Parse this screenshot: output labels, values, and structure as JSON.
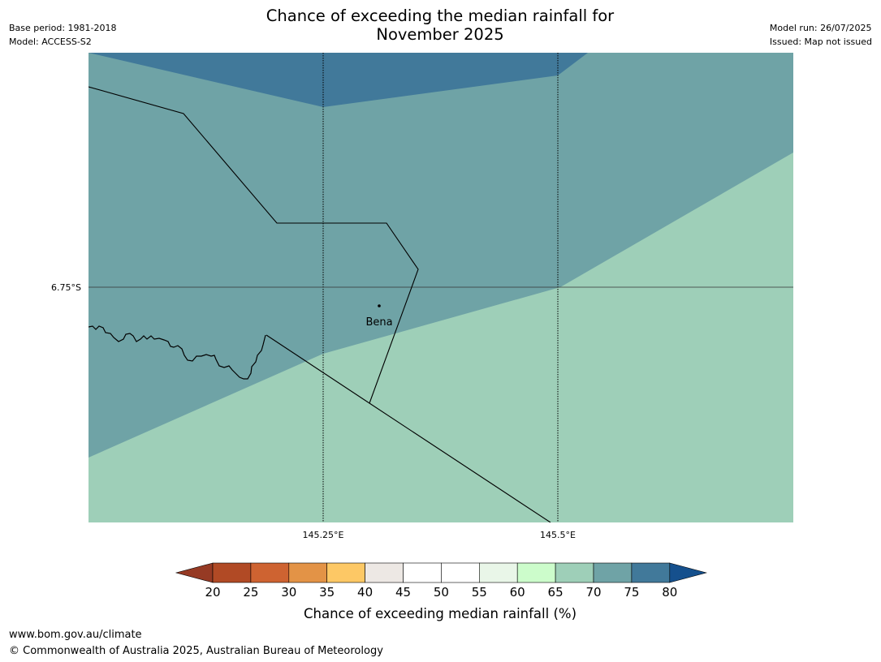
{
  "title": {
    "line1": "Chance of exceeding the median rainfall for",
    "line2": "November 2025"
  },
  "meta_left": {
    "base_period": "Base period: 1981-2018",
    "model": "Model: ACCESS-S2"
  },
  "meta_right": {
    "model_run": "Model run: 26/07/2025",
    "issued": "Issued: Map not issued"
  },
  "map": {
    "place_label": "Bena",
    "lat_label": "6.75°S",
    "lon_labels": [
      "145.25°E",
      "145.5°E"
    ],
    "zone_colors": {
      "p75_80": "#41799a",
      "p70_75": "#6fa3a6",
      "p65_70": "#9ecfb8"
    }
  },
  "colorbar": {
    "ticks": [
      "20",
      "25",
      "30",
      "35",
      "40",
      "45",
      "50",
      "55",
      "60",
      "65",
      "70",
      "75",
      "80"
    ],
    "low_extend_color": "#963a24",
    "high_extend_color": "#15508d",
    "colors": [
      "#b14a25",
      "#ce6331",
      "#e39346",
      "#fdc865",
      "#ede8e4",
      "#ffffff",
      "#ffffff",
      "#e9f6e8",
      "#ccfccb",
      "#9ecfb8",
      "#6fa3a6",
      "#41799a"
    ],
    "label": "Chance of exceeding median rainfall (%)"
  },
  "footer": {
    "url": "www.bom.gov.au/climate",
    "copyright": "© Commonwealth of Australia 2025, Australian Bureau of Meteorology"
  }
}
